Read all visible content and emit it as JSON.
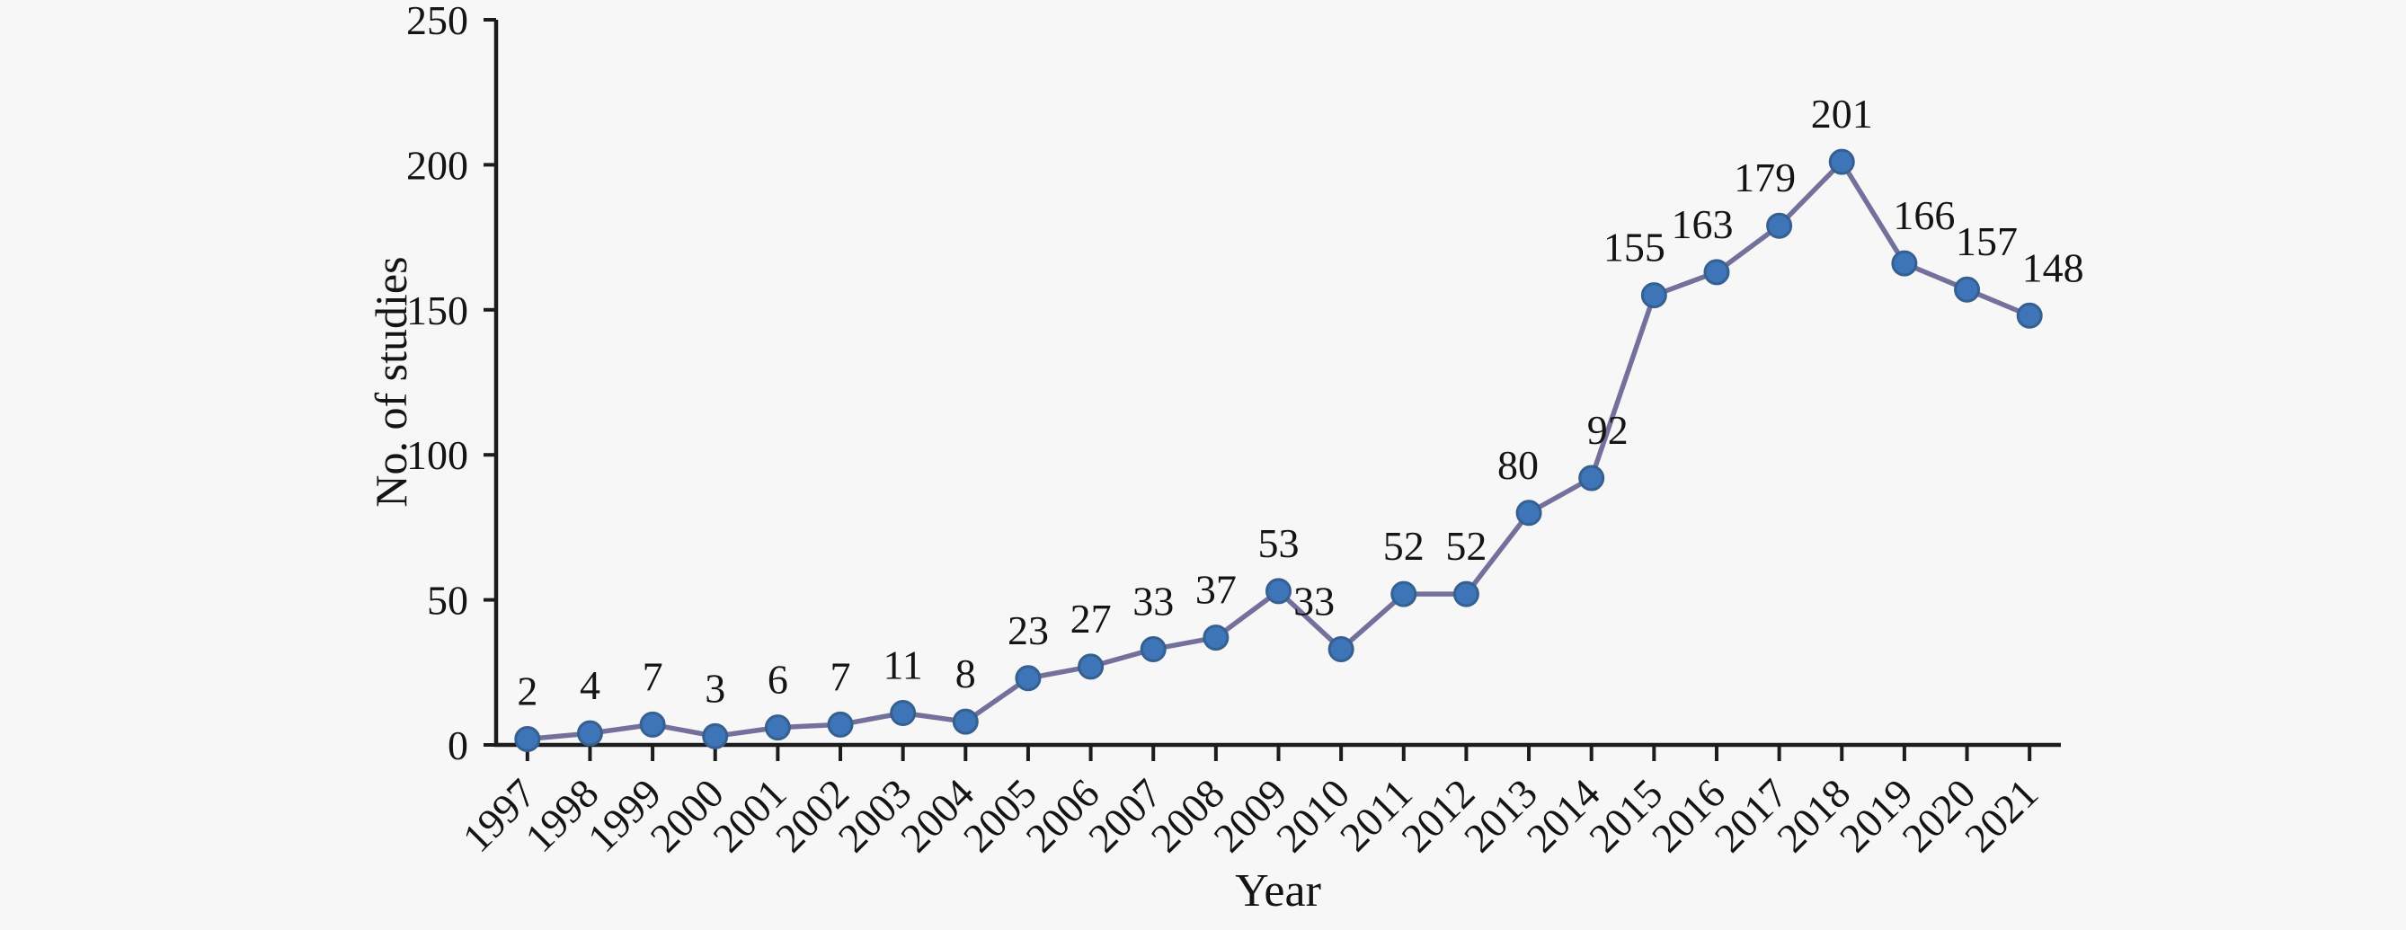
{
  "figure": {
    "background": "#f7f7f8"
  },
  "chart_data": {
    "type": "line",
    "title": "",
    "xlabel": "Year",
    "ylabel": "No. of studies",
    "categories": [
      "1997",
      "1998",
      "1999",
      "2000",
      "2001",
      "2002",
      "2003",
      "2004",
      "2005",
      "2006",
      "2007",
      "2008",
      "2009",
      "2010",
      "2011",
      "2012",
      "2013",
      "2014",
      "2015",
      "2016",
      "2017",
      "2018",
      "2019",
      "2020",
      "2021"
    ],
    "series": [
      {
        "name": "No. of studies",
        "values": [
          2,
          4,
          7,
          3,
          6,
          7,
          11,
          8,
          23,
          27,
          33,
          37,
          53,
          33,
          52,
          52,
          80,
          92,
          155,
          163,
          179,
          201,
          166,
          157,
          148
        ]
      }
    ],
    "data_labels": [
      2,
      4,
      7,
      3,
      6,
      7,
      11,
      8,
      23,
      27,
      33,
      37,
      53,
      33,
      52,
      52,
      80,
      92,
      155,
      163,
      179,
      201,
      166,
      157,
      148
    ],
    "ylim": [
      0,
      250
    ],
    "yticks": [
      0,
      50,
      100,
      150,
      200,
      250
    ],
    "grid": false,
    "legend_position": "none",
    "marker": "circle",
    "colors": {
      "line": "#73719c",
      "marker_fill": "#3e74b8",
      "marker_stroke": "#35608f",
      "axis": "#1c1c1c",
      "text": "#141414",
      "background": "#f7f7f8"
    }
  }
}
